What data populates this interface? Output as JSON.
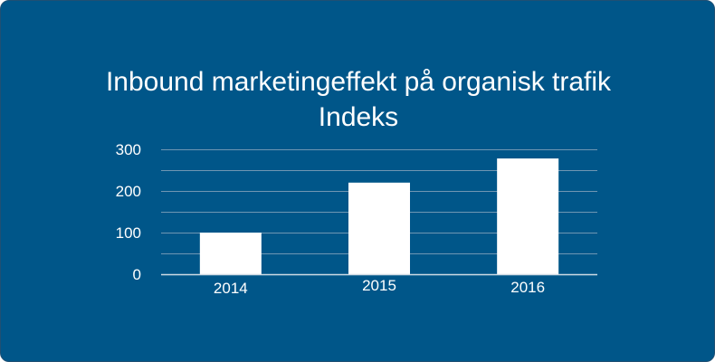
{
  "chart_data": {
    "type": "bar",
    "title": "Inbound marketingeffekt på organisk trafik",
    "subtitle": "Indeks",
    "categories": [
      "2014",
      "2015",
      "2016"
    ],
    "values": [
      100,
      220,
      278
    ],
    "ylim": [
      0,
      300
    ],
    "yticks": [
      0,
      100,
      200,
      300
    ],
    "grid": true,
    "colors": {
      "background": "#005689",
      "bars": "#ffffff",
      "grid": "#6f96b3",
      "text": "#ffffff"
    }
  }
}
